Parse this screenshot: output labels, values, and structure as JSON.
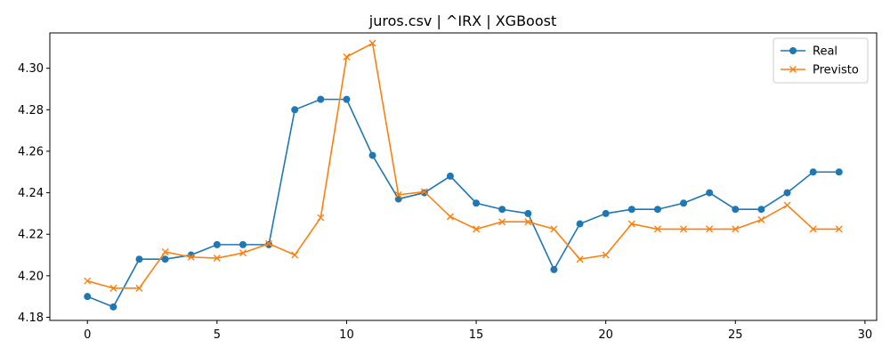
{
  "chart_data": {
    "type": "line",
    "title": "juros.csv | ^IRX | XGBoost",
    "xlabel": "",
    "ylabel": "",
    "xlim": [
      -1.45,
      30.45
    ],
    "ylim": [
      4.1785,
      4.317
    ],
    "xticks": [
      0,
      5,
      10,
      15,
      20,
      25,
      30
    ],
    "yticks": [
      4.18,
      4.2,
      4.22,
      4.24,
      4.26,
      4.28,
      4.3
    ],
    "ytick_labels": [
      "4.18",
      "4.20",
      "4.22",
      "4.24",
      "4.26",
      "4.28",
      "4.30"
    ],
    "grid": false,
    "legend_position": "top-right",
    "x": [
      0,
      1,
      2,
      3,
      4,
      5,
      6,
      7,
      8,
      9,
      10,
      11,
      12,
      13,
      14,
      15,
      16,
      17,
      18,
      19,
      20,
      21,
      22,
      23,
      24,
      25,
      26,
      27,
      28,
      29
    ],
    "series": [
      {
        "name": "Real",
        "color": "#1f77b4",
        "marker": "circle",
        "values": [
          4.19,
          4.185,
          4.208,
          4.208,
          4.21,
          4.215,
          4.215,
          4.215,
          4.28,
          4.285,
          4.285,
          4.258,
          4.237,
          4.24,
          4.248,
          4.235,
          4.232,
          4.23,
          4.203,
          4.225,
          4.23,
          4.232,
          4.232,
          4.235,
          4.24,
          4.232,
          4.232,
          4.24,
          4.25,
          4.25
        ]
      },
      {
        "name": "Previsto",
        "color": "#ff7f0e",
        "marker": "x",
        "values": [
          4.1975,
          4.194,
          4.194,
          4.2115,
          4.209,
          4.2085,
          4.211,
          4.2155,
          4.21,
          4.228,
          4.3055,
          4.312,
          4.239,
          4.2405,
          4.2285,
          4.2225,
          4.226,
          4.226,
          4.2225,
          4.208,
          4.21,
          4.225,
          4.2225,
          4.2225,
          4.2225,
          4.2225,
          4.227,
          4.234,
          4.2225,
          4.2225
        ]
      }
    ]
  }
}
